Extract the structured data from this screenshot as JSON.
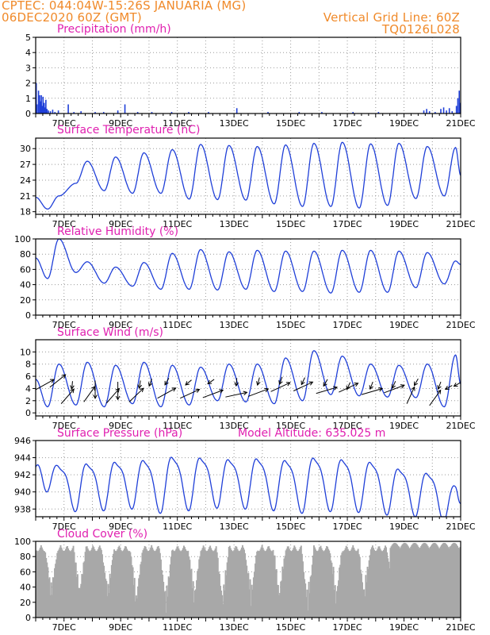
{
  "header": {
    "line1_left": "CPTEC:   044:04W-15:26S   JANUARIA (MG)",
    "line2_left": "06DEC2020 60Z (GMT)",
    "line1_right": "Vertical Grid Line: 60Z",
    "line2_right": "TQ0126L028"
  },
  "colors": {
    "header": "#f08a2a",
    "title": "#e020b0",
    "line": "#1f3fd8",
    "cloud": "#a8a8a8"
  },
  "chart_data": [
    {
      "type": "bar",
      "title": "Precipitation (mm/h)",
      "x_ticks": [
        "7DEC",
        "9DEC",
        "11DEC",
        "13DEC",
        "15DEC",
        "17DEC",
        "19DEC",
        "21DEC"
      ],
      "ylim": [
        0,
        5
      ],
      "y_ticks": [
        0,
        1,
        2,
        3,
        4,
        5
      ],
      "bars": [
        [
          6.02,
          2.0
        ],
        [
          6.05,
          0.6
        ],
        [
          6.1,
          1.5
        ],
        [
          6.14,
          1.2
        ],
        [
          6.17,
          0.8
        ],
        [
          6.2,
          1.2
        ],
        [
          6.23,
          0.5
        ],
        [
          6.26,
          1.1
        ],
        [
          6.3,
          0.7
        ],
        [
          6.33,
          0.4
        ],
        [
          6.36,
          0.9
        ],
        [
          6.4,
          0.3
        ],
        [
          6.45,
          0.2
        ],
        [
          6.52,
          0.15
        ],
        [
          6.6,
          0.25
        ],
        [
          6.68,
          0.1
        ],
        [
          6.8,
          0.2
        ],
        [
          7.15,
          0.6
        ],
        [
          7.35,
          0.1
        ],
        [
          7.6,
          0.15
        ],
        [
          8.1,
          0.1
        ],
        [
          8.4,
          0.1
        ],
        [
          8.9,
          0.2
        ],
        [
          9.15,
          0.6
        ],
        [
          9.6,
          0.1
        ],
        [
          10.1,
          0.1
        ],
        [
          10.8,
          0.1
        ],
        [
          11.4,
          0.1
        ],
        [
          12.1,
          0.1
        ],
        [
          13.1,
          0.35
        ],
        [
          14.2,
          0.1
        ],
        [
          15.3,
          0.1
        ],
        [
          16.1,
          0.1
        ],
        [
          17.2,
          0.1
        ],
        [
          18.1,
          0.1
        ],
        [
          19.7,
          0.2
        ],
        [
          19.8,
          0.3
        ],
        [
          19.9,
          0.15
        ],
        [
          20.1,
          0.1
        ],
        [
          20.3,
          0.3
        ],
        [
          20.4,
          0.4
        ],
        [
          20.5,
          0.2
        ],
        [
          20.6,
          0.35
        ],
        [
          20.7,
          0.15
        ],
        [
          20.85,
          0.5
        ],
        [
          20.9,
          1.0
        ],
        [
          20.95,
          1.5
        ],
        [
          20.98,
          0.7
        ]
      ]
    },
    {
      "type": "line",
      "title": "Surface Temperature (nC)",
      "x_ticks": [
        "7DEC",
        "9DEC",
        "11DEC",
        "13DEC",
        "15DEC",
        "17DEC",
        "19DEC",
        "21DEC"
      ],
      "ylim": [
        17.5,
        32
      ],
      "y_ticks": [
        18,
        21,
        24,
        27,
        30
      ],
      "series": [
        {
          "maxima": [
            21,
            27.6,
            28.4,
            29.2,
            29.8,
            30.8,
            30.6,
            30.4,
            30.7,
            31.0,
            31.2,
            30.9,
            31.0,
            30.4,
            30.2,
            29.6,
            27.5
          ],
          "minima": [
            18.5,
            23.4,
            22.0,
            21.5,
            21.5,
            20.4,
            20.3,
            20.2,
            19.5,
            19.0,
            19.0,
            18.7,
            19.2,
            20.5,
            21.0,
            21.3,
            22.3
          ]
        }
      ]
    },
    {
      "type": "line",
      "title": "Relative Humidity (%)",
      "x_ticks": [
        "7DEC",
        "9DEC",
        "11DEC",
        "13DEC",
        "15DEC",
        "17DEC",
        "19DEC",
        "21DEC"
      ],
      "ylim": [
        0,
        100
      ],
      "y_ticks": [
        0,
        20,
        40,
        60,
        80,
        100
      ],
      "series": [
        {
          "maxima": [
            100,
            70,
            63,
            69,
            81,
            86,
            83,
            85,
            84,
            84,
            85,
            85,
            84,
            82,
            71,
            75,
            90
          ],
          "minima": [
            48,
            56,
            42,
            38,
            34,
            34,
            33,
            34,
            31,
            31,
            29,
            30,
            30,
            36,
            41,
            45,
            43
          ]
        }
      ]
    },
    {
      "type": "line",
      "title": "Surface Wind (m/s)",
      "x_ticks": [
        "7DEC",
        "9DEC",
        "11DEC",
        "13DEC",
        "15DEC",
        "17DEC",
        "19DEC",
        "21DEC"
      ],
      "ylim": [
        -0.5,
        12
      ],
      "y_ticks": [
        0,
        2,
        4,
        6,
        8,
        10
      ],
      "series": [
        {
          "maxima": [
            8,
            8.3,
            7.8,
            8.3,
            7.8,
            7.5,
            8.0,
            8.0,
            9.0,
            10.2,
            9.3,
            8.0,
            7.8,
            8.0,
            9.5,
            10.5,
            6.0
          ],
          "minima": [
            1.0,
            1.3,
            1.0,
            1.5,
            1.0,
            1.3,
            2.0,
            1.8,
            1.5,
            2.0,
            3.0,
            2.8,
            2.6,
            2.5,
            1.0,
            1.2,
            3.5
          ]
        }
      ],
      "vectors": [
        [
          6.0,
          3.8,
          35
        ],
        [
          6.5,
          4.2,
          45
        ],
        [
          6.9,
          1.5,
          55
        ],
        [
          7.3,
          5.2,
          -95
        ],
        [
          7.7,
          1.8,
          60
        ],
        [
          8.1,
          5.3,
          -90
        ],
        [
          8.5,
          1.6,
          55
        ],
        [
          8.9,
          5.1,
          -90
        ],
        [
          9.3,
          1.8,
          50
        ],
        [
          9.7,
          5.3,
          -100
        ],
        [
          10.1,
          5.6,
          -110
        ],
        [
          10.3,
          2.4,
          35
        ],
        [
          10.7,
          5.7,
          -120
        ],
        [
          11.1,
          2.4,
          30
        ],
        [
          11.5,
          5.4,
          -140
        ],
        [
          11.9,
          2.5,
          25
        ],
        [
          12.3,
          5.5,
          -145
        ],
        [
          12.7,
          2.6,
          15
        ],
        [
          13.1,
          5.7,
          -95
        ],
        [
          13.5,
          2.7,
          25
        ],
        [
          13.9,
          5.8,
          -105
        ],
        [
          14.3,
          3.5,
          30
        ],
        [
          14.7,
          5.9,
          -110
        ],
        [
          15.1,
          3.6,
          30
        ],
        [
          15.5,
          5.8,
          -115
        ],
        [
          15.9,
          3.2,
          20
        ],
        [
          16.3,
          5.5,
          -120
        ],
        [
          16.7,
          3.4,
          30
        ],
        [
          17.1,
          5.0,
          -115
        ],
        [
          17.5,
          3.0,
          20
        ],
        [
          17.9,
          5.1,
          -110
        ],
        [
          18.3,
          3.3,
          25
        ],
        [
          18.7,
          5.2,
          -115
        ],
        [
          19.1,
          1.5,
          70
        ],
        [
          19.5,
          5.6,
          -120
        ],
        [
          19.9,
          1.2,
          60
        ],
        [
          20.3,
          5.1,
          -110
        ],
        [
          20.7,
          4.5,
          -150
        ],
        [
          21.0,
          5.0,
          -150
        ]
      ]
    },
    {
      "type": "line",
      "title": "Surface Pressure (hPa)",
      "annotation": "Model Altitude: 635.025 m",
      "x_ticks": [
        "7DEC",
        "9DEC",
        "11DEC",
        "13DEC",
        "15DEC",
        "17DEC",
        "19DEC",
        "21DEC"
      ],
      "ylim": [
        937.1,
        946
      ],
      "y_ticks": [
        938,
        940,
        942,
        944,
        946
      ],
      "series": [
        {
          "maxima": [
            943.3,
            943.6,
            943.8,
            944.0,
            944.4,
            944.3,
            944.1,
            944.2,
            944.0,
            944.3,
            944.1,
            943.8,
            943.0,
            942.5,
            941.0,
            940.2,
            940.0
          ],
          "minima": [
            940.5,
            938.2,
            938.3,
            938.5,
            938.0,
            938.3,
            938.6,
            938.5,
            938.3,
            938.0,
            938.2,
            938.1,
            937.8,
            937.6,
            937.0,
            937.0,
            937.5
          ]
        }
      ]
    },
    {
      "type": "bar",
      "title": "Cloud Cover (%)",
      "x_ticks": [
        "7DEC",
        "9DEC",
        "11DEC",
        "13DEC",
        "15DEC",
        "17DEC",
        "19DEC",
        "21DEC"
      ],
      "ylim": [
        0,
        100
      ],
      "y_ticks": [
        0,
        20,
        40,
        60,
        80,
        100
      ],
      "minima": [
        [
          6.55,
          20
        ],
        [
          7.55,
          25
        ],
        [
          8.55,
          20
        ],
        [
          9.55,
          10
        ],
        [
          10.6,
          5
        ],
        [
          11.6,
          15
        ],
        [
          12.6,
          10
        ],
        [
          13.6,
          15
        ],
        [
          14.6,
          20
        ],
        [
          15.6,
          5
        ],
        [
          16.6,
          15
        ],
        [
          17.6,
          20
        ],
        [
          18.6,
          40
        ],
        [
          19.6,
          55
        ]
      ]
    }
  ]
}
